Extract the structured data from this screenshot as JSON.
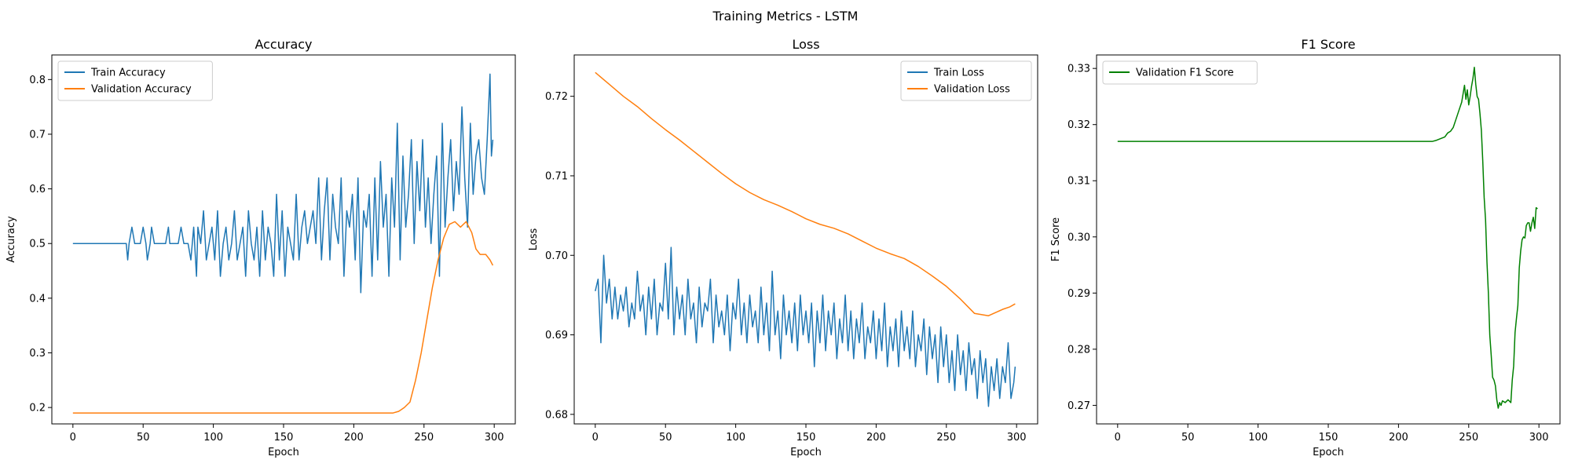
{
  "figure_title": "Training Metrics - LSTM",
  "chart_data": [
    {
      "type": "line",
      "title": "Accuracy",
      "xlabel": "Epoch",
      "ylabel": "Accuracy",
      "xlim": [
        -15,
        315
      ],
      "ylim": [
        0.17,
        0.845
      ],
      "xticks": [
        0,
        50,
        100,
        150,
        200,
        250,
        300
      ],
      "yticks": [
        0.2,
        0.3,
        0.4,
        0.5,
        0.6,
        0.7,
        0.8
      ],
      "ytick_labels": [
        "0.2",
        "0.3",
        "0.4",
        "0.5",
        "0.6",
        "0.7",
        "0.8"
      ],
      "legend_position": "top-left",
      "series": [
        {
          "name": "Train Accuracy",
          "color": "#1f77b4",
          "x": [
            0,
            38,
            39,
            40,
            42,
            44,
            46,
            48,
            50,
            52,
            53,
            55,
            56,
            58,
            60,
            62,
            64,
            66,
            68,
            69,
            71,
            73,
            75,
            77,
            79,
            80,
            82,
            84,
            86,
            88,
            89,
            91,
            93,
            95,
            97,
            99,
            101,
            103,
            105,
            107,
            109,
            111,
            113,
            115,
            117,
            119,
            121,
            123,
            125,
            127,
            129,
            131,
            133,
            135,
            137,
            139,
            141,
            143,
            145,
            147,
            149,
            151,
            153,
            155,
            157,
            159,
            161,
            163,
            165,
            167,
            169,
            171,
            173,
            175,
            177,
            179,
            181,
            183,
            185,
            187,
            189,
            191,
            193,
            195,
            197,
            199,
            201,
            203,
            205,
            207,
            209,
            211,
            213,
            215,
            217,
            219,
            221,
            223,
            225,
            227,
            229,
            231,
            233,
            235,
            237,
            239,
            241,
            243,
            245,
            247,
            249,
            251,
            253,
            255,
            257,
            259,
            261,
            263,
            265,
            267,
            269,
            271,
            273,
            275,
            277,
            279,
            281,
            283,
            285,
            287,
            289,
            291,
            293,
            295,
            297,
            298,
            299
          ],
          "values": [
            0.5,
            0.5,
            0.47,
            0.5,
            0.53,
            0.5,
            0.5,
            0.5,
            0.53,
            0.5,
            0.47,
            0.5,
            0.53,
            0.5,
            0.5,
            0.5,
            0.5,
            0.5,
            0.53,
            0.5,
            0.5,
            0.5,
            0.5,
            0.53,
            0.5,
            0.5,
            0.5,
            0.47,
            0.53,
            0.44,
            0.53,
            0.5,
            0.56,
            0.47,
            0.5,
            0.53,
            0.47,
            0.56,
            0.44,
            0.5,
            0.53,
            0.47,
            0.5,
            0.56,
            0.47,
            0.5,
            0.53,
            0.44,
            0.56,
            0.5,
            0.47,
            0.53,
            0.44,
            0.56,
            0.47,
            0.53,
            0.5,
            0.44,
            0.59,
            0.47,
            0.56,
            0.44,
            0.53,
            0.5,
            0.47,
            0.59,
            0.47,
            0.53,
            0.56,
            0.5,
            0.53,
            0.56,
            0.5,
            0.62,
            0.47,
            0.56,
            0.62,
            0.47,
            0.59,
            0.53,
            0.5,
            0.62,
            0.44,
            0.56,
            0.53,
            0.59,
            0.47,
            0.62,
            0.41,
            0.56,
            0.53,
            0.59,
            0.44,
            0.62,
            0.47,
            0.65,
            0.53,
            0.59,
            0.44,
            0.62,
            0.53,
            0.72,
            0.47,
            0.66,
            0.53,
            0.59,
            0.69,
            0.5,
            0.65,
            0.56,
            0.69,
            0.53,
            0.62,
            0.5,
            0.59,
            0.66,
            0.44,
            0.72,
            0.53,
            0.62,
            0.69,
            0.56,
            0.65,
            0.59,
            0.75,
            0.62,
            0.53,
            0.72,
            0.59,
            0.66,
            0.69,
            0.62,
            0.59,
            0.69,
            0.81,
            0.66,
            0.69
          ]
        },
        {
          "name": "Validation Accuracy",
          "color": "#ff7f0e",
          "x": [
            0,
            222,
            228,
            232,
            236,
            240,
            244,
            248,
            252,
            256,
            260,
            264,
            268,
            272,
            276,
            280,
            284,
            287,
            290,
            294,
            297,
            299
          ],
          "values": [
            0.19,
            0.19,
            0.19,
            0.193,
            0.2,
            0.21,
            0.25,
            0.3,
            0.36,
            0.42,
            0.47,
            0.51,
            0.535,
            0.54,
            0.53,
            0.54,
            0.52,
            0.49,
            0.48,
            0.48,
            0.47,
            0.46
          ]
        }
      ]
    },
    {
      "type": "line",
      "title": "Loss",
      "xlabel": "Epoch",
      "ylabel": "Loss",
      "xlim": [
        -15,
        315
      ],
      "ylim": [
        0.6788,
        0.7252
      ],
      "xticks": [
        0,
        50,
        100,
        150,
        200,
        250,
        300
      ],
      "yticks": [
        0.68,
        0.69,
        0.7,
        0.71,
        0.72
      ],
      "ytick_labels": [
        "0.68",
        "0.69",
        "0.70",
        "0.71",
        "0.72"
      ],
      "legend_position": "top-right",
      "series": [
        {
          "name": "Train Loss",
          "color": "#1f77b4",
          "x": [
            0,
            2,
            4,
            6,
            8,
            10,
            12,
            14,
            16,
            18,
            20,
            22,
            24,
            26,
            28,
            30,
            32,
            34,
            36,
            38,
            40,
            42,
            44,
            46,
            48,
            50,
            52,
            54,
            56,
            58,
            60,
            62,
            64,
            66,
            68,
            70,
            72,
            74,
            76,
            78,
            80,
            82,
            84,
            86,
            88,
            90,
            92,
            94,
            96,
            98,
            100,
            102,
            104,
            106,
            108,
            110,
            112,
            114,
            116,
            118,
            120,
            122,
            124,
            126,
            128,
            130,
            132,
            134,
            136,
            138,
            140,
            142,
            144,
            146,
            148,
            150,
            152,
            154,
            156,
            158,
            160,
            162,
            164,
            166,
            168,
            170,
            172,
            174,
            176,
            178,
            180,
            182,
            184,
            186,
            188,
            190,
            192,
            194,
            196,
            198,
            200,
            202,
            204,
            206,
            208,
            210,
            212,
            214,
            216,
            218,
            220,
            222,
            224,
            226,
            228,
            230,
            232,
            234,
            236,
            238,
            240,
            242,
            244,
            246,
            248,
            250,
            252,
            254,
            256,
            258,
            260,
            262,
            264,
            266,
            268,
            270,
            272,
            274,
            276,
            278,
            280,
            282,
            284,
            286,
            288,
            290,
            292,
            294,
            296,
            298,
            299
          ],
          "values": [
            0.6955,
            0.697,
            0.689,
            0.7,
            0.694,
            0.697,
            0.692,
            0.696,
            0.692,
            0.695,
            0.693,
            0.696,
            0.691,
            0.694,
            0.692,
            0.698,
            0.693,
            0.695,
            0.69,
            0.696,
            0.692,
            0.697,
            0.69,
            0.694,
            0.693,
            0.699,
            0.692,
            0.701,
            0.69,
            0.696,
            0.692,
            0.695,
            0.69,
            0.697,
            0.692,
            0.694,
            0.689,
            0.696,
            0.691,
            0.694,
            0.693,
            0.697,
            0.689,
            0.695,
            0.691,
            0.693,
            0.69,
            0.695,
            0.688,
            0.694,
            0.692,
            0.697,
            0.69,
            0.694,
            0.689,
            0.695,
            0.691,
            0.693,
            0.689,
            0.696,
            0.69,
            0.694,
            0.688,
            0.698,
            0.69,
            0.693,
            0.687,
            0.695,
            0.69,
            0.693,
            0.689,
            0.694,
            0.688,
            0.695,
            0.69,
            0.693,
            0.689,
            0.694,
            0.686,
            0.693,
            0.689,
            0.695,
            0.688,
            0.693,
            0.69,
            0.694,
            0.687,
            0.692,
            0.689,
            0.695,
            0.688,
            0.693,
            0.687,
            0.692,
            0.689,
            0.694,
            0.687,
            0.691,
            0.689,
            0.693,
            0.687,
            0.692,
            0.688,
            0.694,
            0.686,
            0.691,
            0.688,
            0.692,
            0.686,
            0.693,
            0.688,
            0.691,
            0.687,
            0.693,
            0.686,
            0.69,
            0.688,
            0.692,
            0.685,
            0.691,
            0.687,
            0.69,
            0.684,
            0.691,
            0.686,
            0.69,
            0.684,
            0.688,
            0.683,
            0.69,
            0.685,
            0.688,
            0.683,
            0.689,
            0.685,
            0.687,
            0.682,
            0.688,
            0.684,
            0.687,
            0.681,
            0.686,
            0.683,
            0.687,
            0.682,
            0.686,
            0.684,
            0.689,
            0.682,
            0.684,
            0.686
          ]
        },
        {
          "name": "Validation Loss",
          "color": "#ff7f0e",
          "x": [
            0,
            10,
            20,
            30,
            40,
            50,
            60,
            70,
            80,
            90,
            100,
            110,
            120,
            130,
            140,
            150,
            160,
            170,
            180,
            190,
            200,
            210,
            220,
            230,
            240,
            250,
            260,
            270,
            280,
            285,
            290,
            295,
            299
          ],
          "values": [
            0.723,
            0.7215,
            0.72,
            0.7187,
            0.7172,
            0.7158,
            0.7145,
            0.7131,
            0.7117,
            0.7103,
            0.709,
            0.7079,
            0.707,
            0.7063,
            0.7055,
            0.7046,
            0.7039,
            0.7034,
            0.7027,
            0.7018,
            0.7009,
            0.7002,
            0.6996,
            0.6986,
            0.6974,
            0.6961,
            0.6945,
            0.6927,
            0.6924,
            0.6928,
            0.6932,
            0.6935,
            0.6939
          ]
        }
      ]
    },
    {
      "type": "line",
      "title": "F1 Score",
      "xlabel": "Epoch",
      "ylabel": "F1 Score",
      "xlim": [
        -15,
        315
      ],
      "ylim": [
        0.2667,
        0.3324
      ],
      "xticks": [
        0,
        50,
        100,
        150,
        200,
        250,
        300
      ],
      "yticks": [
        0.27,
        0.28,
        0.29,
        0.3,
        0.31,
        0.32,
        0.33
      ],
      "ytick_labels": [
        "0.27",
        "0.28",
        "0.29",
        "0.30",
        "0.31",
        "0.32",
        "0.33"
      ],
      "legend_position": "top-left",
      "series": [
        {
          "name": "Validation F1 Score",
          "color": "#008000",
          "x": [
            0,
            224,
            227,
            230,
            233,
            235,
            237,
            239,
            241,
            243,
            245,
            246,
            247,
            248,
            249,
            250,
            251,
            252,
            253,
            254,
            255,
            256,
            257,
            258,
            259,
            260,
            261,
            262,
            263,
            264,
            265,
            266,
            267,
            268,
            269,
            270,
            271,
            272,
            273,
            274,
            276,
            278,
            280,
            281,
            282,
            283,
            284,
            285,
            286,
            287,
            288,
            289,
            290,
            291,
            292,
            293,
            294,
            295,
            296,
            297,
            298,
            299
          ],
          "values": [
            0.317,
            0.317,
            0.3172,
            0.3175,
            0.3178,
            0.3185,
            0.3188,
            0.3195,
            0.321,
            0.3225,
            0.324,
            0.3255,
            0.327,
            0.3245,
            0.3262,
            0.3235,
            0.325,
            0.3268,
            0.3282,
            0.3302,
            0.3272,
            0.325,
            0.3245,
            0.322,
            0.319,
            0.3135,
            0.307,
            0.303,
            0.2955,
            0.29,
            0.2825,
            0.279,
            0.275,
            0.2745,
            0.2735,
            0.271,
            0.2695,
            0.2705,
            0.27,
            0.2708,
            0.2705,
            0.271,
            0.2705,
            0.2745,
            0.277,
            0.283,
            0.2855,
            0.2878,
            0.2945,
            0.2975,
            0.2995,
            0.3,
            0.2998,
            0.302,
            0.3025,
            0.3025,
            0.301,
            0.3025,
            0.3035,
            0.3015,
            0.3052,
            0.305
          ]
        }
      ]
    }
  ]
}
